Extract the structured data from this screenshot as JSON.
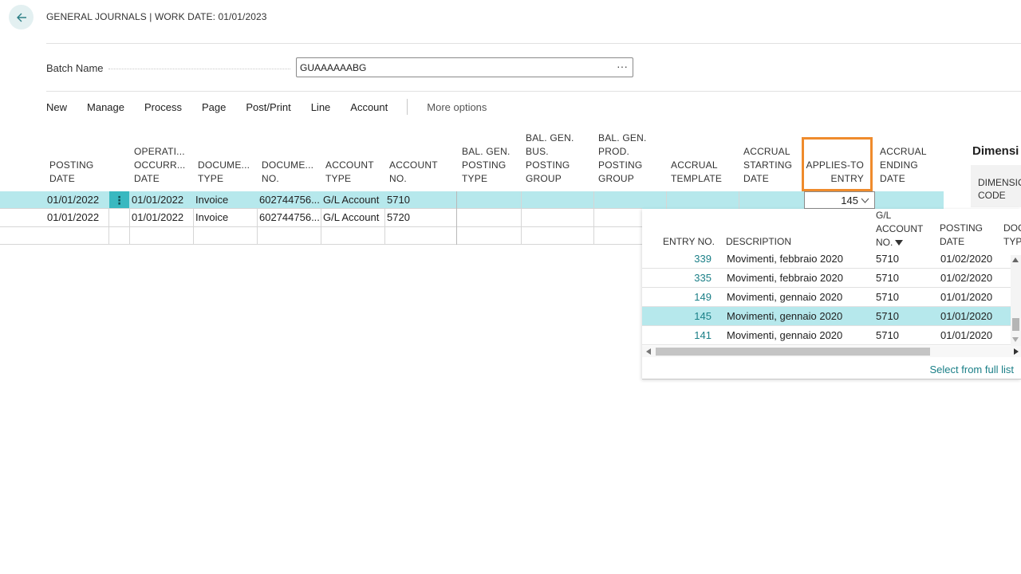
{
  "page": {
    "title": "GENERAL JOURNALS | WORK DATE: 01/01/2023"
  },
  "batch": {
    "label": "Batch Name",
    "value": "GUAAAAAABG",
    "more_label": "···"
  },
  "actions": {
    "items": [
      "New",
      "Manage",
      "Process",
      "Page",
      "Post/Print",
      "Line",
      "Account"
    ],
    "more_options": "More options"
  },
  "columns": [
    {
      "l1": "",
      "l2": "",
      "l3": "POSTING",
      "l4": "DATE"
    },
    {
      "l1": "",
      "l2": "OPERATI...",
      "l3": "OCCURR...",
      "l4": "DATE"
    },
    {
      "l1": "",
      "l2": "",
      "l3": "DOCUME...",
      "l4": "TYPE"
    },
    {
      "l1": "",
      "l2": "",
      "l3": "DOCUME...",
      "l4": "NO."
    },
    {
      "l1": "",
      "l2": "",
      "l3": "ACCOUNT",
      "l4": "TYPE"
    },
    {
      "l1": "",
      "l2": "",
      "l3": "ACCOUNT",
      "l4": "NO."
    },
    {
      "l1": "",
      "l2": "BAL. GEN.",
      "l3": "POSTING",
      "l4": "TYPE"
    },
    {
      "l1": "BAL. GEN.",
      "l2": "BUS.",
      "l3": "POSTING",
      "l4": "GROUP"
    },
    {
      "l1": "BAL. GEN.",
      "l2": "PROD.",
      "l3": "POSTING",
      "l4": "GROUP"
    },
    {
      "l1": "",
      "l2": "",
      "l3": "ACCRUAL",
      "l4": "TEMPLATE"
    },
    {
      "l1": "",
      "l2": "ACCRUAL",
      "l3": "STARTING",
      "l4": "DATE"
    },
    {
      "l1": "",
      "l2": "",
      "l3": "APPLIES-TO",
      "l4": "ENTRY"
    },
    {
      "l1": "",
      "l2": "ACCRUAL",
      "l3": "ENDING",
      "l4": "DATE"
    }
  ],
  "rows": [
    {
      "posting_date": "01/01/2022",
      "occurrence_date": "01/01/2022",
      "doc_type": "Invoice",
      "doc_no": "602744756...",
      "account_type": "G/L Account",
      "account_no": "5710",
      "applies_to_entry": "145"
    },
    {
      "posting_date": "01/01/2022",
      "occurrence_date": "01/01/2022",
      "doc_type": "Invoice",
      "doc_no": "602744756...",
      "account_type": "G/L Account",
      "account_no": "5720",
      "applies_to_entry": ""
    }
  ],
  "row_menu_icon": "⋮",
  "dimensions": {
    "title": "Dimensi",
    "col_l1": "DIMENSIO",
    "col_l2": "CODE"
  },
  "lookup": {
    "headers": {
      "entry_no": "ENTRY NO.",
      "description": "DESCRIPTION",
      "gl_account_l1": "G/L",
      "gl_account_l2": "ACCOUNT",
      "gl_account_l3": "NO.",
      "posting_date_l1": "POSTING",
      "posting_date_l2": "DATE",
      "doc_l1": "DOC",
      "doc_l2": "TYP"
    },
    "rows": [
      {
        "entry_no": "339",
        "description": "Movimenti, febbraio 2020",
        "gl_account": "5710",
        "posting_date": "01/02/2020"
      },
      {
        "entry_no": "335",
        "description": "Movimenti, febbraio 2020",
        "gl_account": "5710",
        "posting_date": "01/02/2020"
      },
      {
        "entry_no": "149",
        "description": "Movimenti, gennaio 2020",
        "gl_account": "5710",
        "posting_date": "01/01/2020"
      },
      {
        "entry_no": "145",
        "description": "Movimenti, gennaio 2020",
        "gl_account": "5710",
        "posting_date": "01/01/2020"
      },
      {
        "entry_no": "141",
        "description": "Movimenti, gennaio 2020",
        "gl_account": "5710",
        "posting_date": "01/01/2020"
      }
    ],
    "selected_entry": "145",
    "select_full_list": "Select from full list"
  },
  "colors": {
    "accent": "#1a7f87",
    "selection": "#b6e8ec",
    "highlight_border": "#ef8b2c"
  }
}
